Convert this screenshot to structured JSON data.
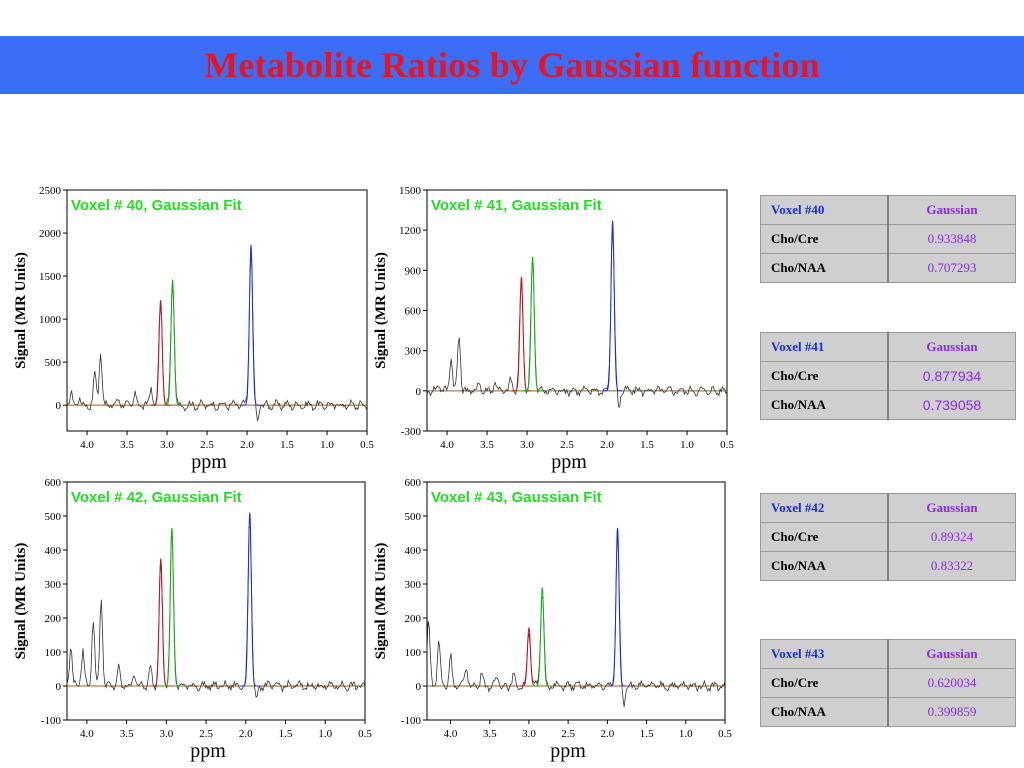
{
  "title": "Metabolite Ratios by Gaussian function",
  "colors": {
    "header_bg": "#3b6df7",
    "title": "#e8141f",
    "raw": "#333333",
    "cho": "#c0141f",
    "cre": "#16b016",
    "naa": "#1a2fd6",
    "baseline": "#a05a1e",
    "panel_title": "#22dd22"
  },
  "chart_data": [
    {
      "type": "line",
      "title": "Voxel # 40, Gaussian Fit",
      "xlabel": "ppm",
      "ylabel": "Signal (MR Units)",
      "xlim": [
        4.25,
        0.5
      ],
      "ylim": [
        -300,
        2500
      ],
      "xticks": [
        "4.0",
        "3.5",
        "3.0",
        "2.5",
        "2.0",
        "1.5",
        "1.0",
        "0.5"
      ],
      "yticks": [
        "0",
        "500",
        "1000",
        "1500",
        "2000",
        "2500"
      ],
      "peaks": {
        "Cho": [
          3.08,
          1220
        ],
        "Cre": [
          2.93,
          1460
        ],
        "NAA": [
          1.95,
          1860
        ]
      },
      "raw_peaks": [
        [
          4.2,
          130
        ],
        [
          4.1,
          90
        ],
        [
          3.9,
          380
        ],
        [
          3.83,
          620
        ],
        [
          3.6,
          80
        ],
        [
          3.4,
          120
        ],
        [
          3.2,
          200
        ]
      ]
    },
    {
      "type": "line",
      "title": "Voxel # 41, Gaussian Fit",
      "xlabel": "ppm",
      "ylabel": "Signal (MR Units)",
      "xlim": [
        4.25,
        0.5
      ],
      "ylim": [
        -300,
        1500
      ],
      "xticks": [
        "4.0",
        "3.5",
        "3.0",
        "2.5",
        "2.0",
        "1.5",
        "1.0",
        "0.5"
      ],
      "yticks": [
        "-300",
        "0",
        "300",
        "600",
        "900",
        "1200",
        "1500"
      ],
      "peaks": {
        "Cho": [
          3.07,
          850
        ],
        "Cre": [
          2.93,
          1000
        ],
        "NAA": [
          1.93,
          1270
        ]
      },
      "raw_peaks": [
        [
          4.1,
          60
        ],
        [
          3.95,
          260
        ],
        [
          3.85,
          420
        ],
        [
          3.6,
          60
        ],
        [
          3.4,
          70
        ],
        [
          3.2,
          80
        ]
      ]
    },
    {
      "type": "line",
      "title": "Voxel # 42, Gaussian Fit",
      "xlabel": "ppm",
      "ylabel": "Signal (MR Units)",
      "xlim": [
        4.25,
        0.5
      ],
      "ylim": [
        -100,
        600
      ],
      "xticks": [
        "4.0",
        "3.5",
        "3.0",
        "2.5",
        "2.0",
        "1.5",
        "1.0",
        "0.5"
      ],
      "yticks": [
        "-100",
        "0",
        "100",
        "200",
        "300",
        "400",
        "500",
        "600"
      ],
      "peaks": {
        "Cho": [
          3.07,
          375
        ],
        "Cre": [
          2.93,
          465
        ],
        "NAA": [
          1.95,
          510
        ]
      },
      "raw_peaks": [
        [
          4.2,
          120
        ],
        [
          4.05,
          110
        ],
        [
          3.92,
          200
        ],
        [
          3.82,
          260
        ],
        [
          3.6,
          50
        ],
        [
          3.4,
          40
        ],
        [
          3.2,
          50
        ]
      ]
    },
    {
      "type": "line",
      "title": "Voxel # 43, Gaussian Fit",
      "xlabel": "ppm",
      "ylabel": "Signal (MR Units)",
      "xlim": [
        4.3,
        0.5
      ],
      "ylim": [
        -100,
        600
      ],
      "xticks": [
        "4.0",
        "3.5",
        "3.0",
        "2.5",
        "2.0",
        "1.5",
        "1.0",
        "0.5"
      ],
      "yticks": [
        "-100",
        "0",
        "100",
        "200",
        "300",
        "400",
        "500",
        "600"
      ],
      "peaks": {
        "Cho": [
          3.0,
          170
        ],
        "Cre": [
          2.83,
          290
        ],
        "NAA": [
          1.87,
          465
        ]
      },
      "raw_peaks": [
        [
          4.28,
          200
        ],
        [
          4.15,
          140
        ],
        [
          4.0,
          90
        ],
        [
          3.8,
          60
        ],
        [
          3.6,
          40
        ],
        [
          3.4,
          30
        ],
        [
          3.2,
          30
        ]
      ]
    }
  ],
  "tables": [
    {
      "header": "Voxel #40",
      "method": "Gaussian",
      "rows": [
        {
          "label": "Cho/Cre",
          "value": "0.933848"
        },
        {
          "label": "Cho/NAA",
          "value": "0.707293"
        }
      ]
    },
    {
      "header": "Voxel #41",
      "method": "Gaussian",
      "rows": [
        {
          "label": "Cho/Cre",
          "value": "0.877934"
        },
        {
          "label": "Cho/NAA",
          "value": "0.739058"
        }
      ]
    },
    {
      "header": "Voxel #42",
      "method": "Gaussian",
      "rows": [
        {
          "label": "Cho/Cre",
          "value": "0.89324"
        },
        {
          "label": "Cho/NAA",
          "value": "0.83322"
        }
      ]
    },
    {
      "header": "Voxel #43",
      "method": "Gaussian",
      "rows": [
        {
          "label": "Cho/Cre",
          "value": "0.620034"
        },
        {
          "label": "Cho/NAA",
          "value": "0.399859"
        }
      ]
    }
  ]
}
